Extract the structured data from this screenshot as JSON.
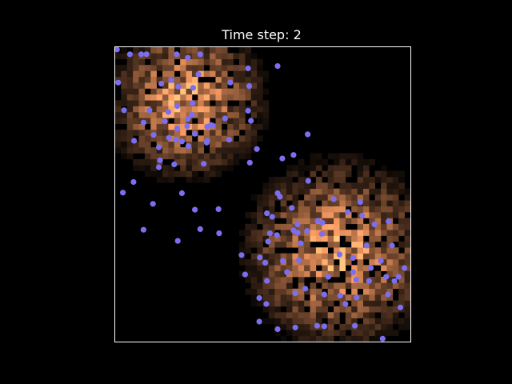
{
  "chart_data": {
    "type": "heatmap",
    "title": "Time step: 2",
    "xlabel": "",
    "ylabel": "",
    "axes_visible": false,
    "grid": false,
    "legend": "none",
    "colormap": "copper",
    "background_color": "#000000",
    "frame_color": "#ffffff",
    "point_color": "#7b6ff0",
    "grid_size": [
      50,
      50
    ],
    "clusters": [
      {
        "center": [
          12,
          41
        ],
        "radius": 15
      },
      {
        "center": [
          38,
          15
        ],
        "radius": 18
      }
    ],
    "series": [
      {
        "type": "scatter",
        "points": [
          [
            0.3,
            49.6
          ],
          [
            2.5,
            48.8
          ],
          [
            4.4,
            48.8
          ],
          [
            5.3,
            48.8
          ],
          [
            10.4,
            48.8
          ],
          [
            12.3,
            48.2
          ],
          [
            14.4,
            48.8
          ],
          [
            14.1,
            45.4
          ],
          [
            9.5,
            44.4
          ],
          [
            10.7,
            43.3
          ],
          [
            0.5,
            44.0
          ],
          [
            7.8,
            43.8
          ],
          [
            13.2,
            43.1
          ],
          [
            19.5,
            44.0
          ],
          [
            22.7,
            43.4
          ],
          [
            22.5,
            46.4
          ],
          [
            27.5,
            46.8
          ],
          [
            13.1,
            40.5
          ],
          [
            10.5,
            40.0
          ],
          [
            1.5,
            39.3
          ],
          [
            5.8,
            39.3
          ],
          [
            9.0,
            39.0
          ],
          [
            13.0,
            38.5
          ],
          [
            12.3,
            37.8
          ],
          [
            16.2,
            36.8
          ],
          [
            18.6,
            37.9
          ],
          [
            22.5,
            39.2
          ],
          [
            23.0,
            37.5
          ],
          [
            4.8,
            37.2
          ],
          [
            8.4,
            37.4
          ],
          [
            10.5,
            36.2
          ],
          [
            12.2,
            36.6
          ],
          [
            13.5,
            35.3
          ],
          [
            15.6,
            36.5
          ],
          [
            16.5,
            36.7
          ],
          [
            6.5,
            35.1
          ],
          [
            9.1,
            34.6
          ],
          [
            10.3,
            34.3
          ],
          [
            3.2,
            34.1
          ],
          [
            7.4,
            33.0
          ],
          [
            11.3,
            34.0
          ],
          [
            15.6,
            34.1
          ],
          [
            19.3,
            34.3
          ],
          [
            12.4,
            33.2
          ],
          [
            15.5,
            33.8
          ],
          [
            24.0,
            32.7
          ],
          [
            7.6,
            30.8
          ],
          [
            15.0,
            30.2
          ],
          [
            10.0,
            30.1
          ],
          [
            22.8,
            30.4
          ],
          [
            32.6,
            35.2
          ],
          [
            28.3,
            31.1
          ],
          [
            30.2,
            31.7
          ],
          [
            3.1,
            27.1
          ],
          [
            7.4,
            29.6
          ],
          [
            32.7,
            27.3
          ],
          [
            1.3,
            25.3
          ],
          [
            11.3,
            25.2
          ],
          [
            27.5,
            25.2
          ],
          [
            6.4,
            23.4
          ],
          [
            13.5,
            22.4
          ],
          [
            17.5,
            22.5
          ],
          [
            25.7,
            21.8
          ],
          [
            26.6,
            21.2
          ],
          [
            27.9,
            24.6
          ],
          [
            29.9,
            22.7
          ],
          [
            37.0,
            24.2
          ],
          [
            39.4,
            22.0
          ],
          [
            41.8,
            21.4
          ],
          [
            46.3,
            20.4
          ],
          [
            43.9,
            19.9
          ],
          [
            4.8,
            19.0
          ],
          [
            14.4,
            19.1
          ],
          [
            30.9,
            19.9
          ],
          [
            26.2,
            18.4
          ],
          [
            27.4,
            18.1
          ],
          [
            30.2,
            18.9
          ],
          [
            32.5,
            18.8
          ],
          [
            25.9,
            17.0
          ],
          [
            31.4,
            16.7
          ],
          [
            42.6,
            16.3
          ],
          [
            46.9,
            16.3
          ],
          [
            35.1,
            20.2
          ],
          [
            41.5,
            23.7
          ],
          [
            17.6,
            18.4
          ],
          [
            10.6,
            17.1
          ],
          [
            34.3,
            20.5
          ],
          [
            35.0,
            18.3
          ],
          [
            24.5,
            14.3
          ],
          [
            25.4,
            13.4
          ],
          [
            21.4,
            14.7
          ],
          [
            28.4,
            13.7
          ],
          [
            31.1,
            13.8
          ],
          [
            38.0,
            14.8
          ],
          [
            40.3,
            14.2
          ],
          [
            43.3,
            12.5
          ],
          [
            45.0,
            13.7
          ],
          [
            49.0,
            12.5
          ],
          [
            48.0,
            11.0
          ],
          [
            36.1,
            11.0
          ],
          [
            40.3,
            11.8
          ],
          [
            22.0,
            11.4
          ],
          [
            25.7,
            10.3
          ],
          [
            32.2,
            9.0
          ],
          [
            40.8,
            10.5
          ],
          [
            35.4,
            8.0
          ],
          [
            29.1,
            11.8
          ],
          [
            40.9,
            7.5
          ],
          [
            38.1,
            7.8
          ],
          [
            43.0,
            10.3
          ],
          [
            46.2,
            8.0
          ],
          [
            47.3,
            10.3
          ],
          [
            45.9,
            11.0
          ],
          [
            48.3,
            5.8
          ],
          [
            30.5,
            8.2
          ],
          [
            24.4,
            7.4
          ],
          [
            25.6,
            6.4
          ],
          [
            24.4,
            3.4
          ],
          [
            27.5,
            2.1
          ],
          [
            30.5,
            2.4
          ],
          [
            34.2,
            2.7
          ],
          [
            35.4,
            2.6
          ],
          [
            40.6,
            2.7
          ],
          [
            45.3,
            0.5
          ],
          [
            39.0,
            6.4
          ],
          [
            30.9,
            18.5
          ]
        ]
      }
    ]
  }
}
